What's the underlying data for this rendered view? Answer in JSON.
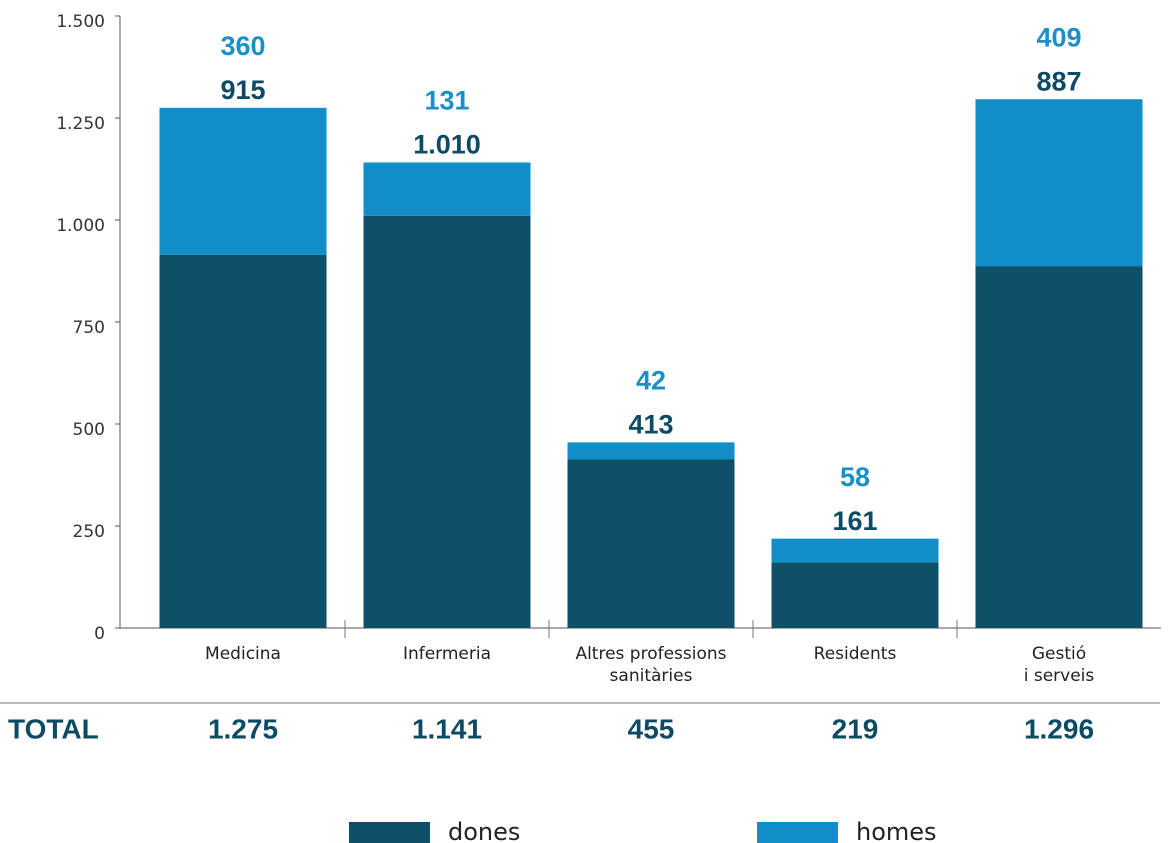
{
  "chart_data": {
    "type": "stacked_bar",
    "categories": [
      "Medicina",
      "Infermeria",
      "Altres professions\nsanitàries",
      "Residents",
      "Gestió\ni serveis"
    ],
    "series": [
      {
        "name": "dones",
        "color": "#0d5068",
        "values": [
          915,
          1010,
          413,
          161,
          887
        ],
        "value_labels": [
          "915",
          "1.010",
          "413",
          "161",
          "887"
        ]
      },
      {
        "name": "homes",
        "color": "#128ec7",
        "values": [
          360,
          131,
          42,
          58,
          409
        ]
      }
    ],
    "ylim": [
      0,
      1500
    ],
    "yticks": [
      0,
      250,
      500,
      750,
      {
        "value": 1000,
        "label": "1.000"
      },
      {
        "value": 1250,
        "label": "1.250"
      },
      {
        "value": 1500,
        "label": "1.500"
      }
    ],
    "totals": {
      "label": "TOTAL",
      "values": [
        1275,
        1141,
        455,
        219,
        1296
      ],
      "value_labels": [
        "1.275",
        "1.141",
        "455",
        "219",
        "1.296"
      ]
    }
  }
}
